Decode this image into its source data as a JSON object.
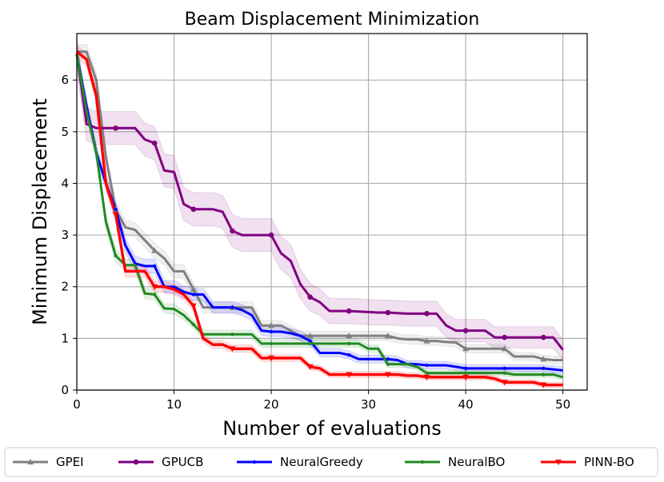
{
  "chart_data": {
    "type": "line",
    "title": "Beam Displacement Minimization",
    "xlabel": "Number of evaluations",
    "ylabel": "Minimum Displacement",
    "xlim": [
      0,
      52.5
    ],
    "ylim": [
      0,
      6.9
    ],
    "xticks": [
      0,
      10,
      20,
      30,
      40,
      50
    ],
    "yticks": [
      0,
      1,
      2,
      3,
      4,
      5,
      6
    ],
    "xtick_labels": [
      "0",
      "10",
      "20",
      "30",
      "40",
      "50"
    ],
    "ytick_labels": [
      "0",
      "1",
      "2",
      "3",
      "4",
      "5",
      "6"
    ],
    "grid": true,
    "legend_position": "bottom",
    "series": [
      {
        "name": "GPEI",
        "color": "#808080",
        "marker": "triangle-up",
        "band": 0.14,
        "x": [
          0,
          1,
          2,
          3,
          4,
          5,
          6,
          7,
          8,
          9,
          10,
          11,
          12,
          13,
          14,
          15,
          16,
          17,
          18,
          19,
          20,
          21,
          22,
          23,
          24,
          25,
          26,
          27,
          28,
          29,
          30,
          31,
          32,
          33,
          34,
          35,
          36,
          37,
          38,
          39,
          40,
          41,
          42,
          43,
          44,
          45,
          46,
          47,
          48,
          49,
          50
        ],
        "y": [
          6.55,
          6.55,
          6.0,
          4.5,
          3.5,
          3.15,
          3.1,
          2.9,
          2.7,
          2.55,
          2.3,
          2.3,
          1.95,
          1.6,
          1.6,
          1.6,
          1.6,
          1.6,
          1.6,
          1.25,
          1.25,
          1.25,
          1.15,
          1.05,
          1.05,
          1.05,
          1.05,
          1.05,
          1.05,
          1.05,
          1.05,
          1.05,
          1.05,
          1.0,
          0.98,
          0.98,
          0.95,
          0.95,
          0.93,
          0.92,
          0.8,
          0.8,
          0.8,
          0.8,
          0.8,
          0.65,
          0.65,
          0.65,
          0.6,
          0.58,
          0.58
        ],
        "markers_x": [
          4,
          8,
          12,
          16,
          20,
          24,
          28,
          32,
          36,
          40,
          44,
          48
        ]
      },
      {
        "name": "GPUCB",
        "color": "#800080",
        "marker": "circle",
        "band": 0.32,
        "x": [
          0,
          1,
          2,
          3,
          4,
          5,
          6,
          7,
          8,
          9,
          10,
          11,
          12,
          13,
          14,
          15,
          16,
          17,
          18,
          19,
          20,
          21,
          22,
          23,
          24,
          25,
          26,
          27,
          28,
          29,
          30,
          31,
          32,
          33,
          34,
          35,
          36,
          37,
          38,
          39,
          40,
          41,
          42,
          43,
          44,
          45,
          46,
          47,
          48,
          49,
          50
        ],
        "y": [
          6.5,
          5.15,
          5.07,
          5.07,
          5.07,
          5.07,
          5.07,
          4.85,
          4.78,
          4.25,
          4.22,
          3.6,
          3.5,
          3.5,
          3.5,
          3.45,
          3.08,
          3.0,
          3.0,
          3.0,
          3.0,
          2.65,
          2.5,
          2.05,
          1.8,
          1.7,
          1.53,
          1.53,
          1.53,
          1.52,
          1.51,
          1.5,
          1.5,
          1.49,
          1.48,
          1.48,
          1.48,
          1.48,
          1.25,
          1.15,
          1.15,
          1.15,
          1.15,
          1.02,
          1.02,
          1.02,
          1.02,
          1.02,
          1.02,
          1.02,
          0.78
        ],
        "markers_x": [
          4,
          8,
          12,
          16,
          20,
          24,
          28,
          32,
          36,
          40,
          44,
          48
        ]
      },
      {
        "name": "NeuralGreedy",
        "color": "#0000ff",
        "marker": "dot",
        "band": 0.14,
        "x": [
          0,
          1,
          2,
          3,
          4,
          5,
          6,
          7,
          8,
          9,
          10,
          11,
          12,
          13,
          14,
          15,
          16,
          17,
          18,
          19,
          20,
          21,
          22,
          23,
          24,
          25,
          26,
          27,
          28,
          29,
          30,
          31,
          32,
          33,
          34,
          35,
          36,
          37,
          38,
          39,
          40,
          41,
          42,
          43,
          44,
          45,
          46,
          47,
          48,
          49,
          50
        ],
        "y": [
          6.5,
          5.5,
          4.6,
          4.0,
          3.5,
          2.8,
          2.45,
          2.4,
          2.4,
          2.0,
          2.0,
          1.9,
          1.85,
          1.85,
          1.6,
          1.6,
          1.6,
          1.55,
          1.45,
          1.15,
          1.13,
          1.13,
          1.1,
          1.05,
          0.95,
          0.72,
          0.72,
          0.72,
          0.68,
          0.6,
          0.6,
          0.6,
          0.6,
          0.58,
          0.5,
          0.5,
          0.48,
          0.48,
          0.48,
          0.45,
          0.42,
          0.42,
          0.42,
          0.42,
          0.42,
          0.42,
          0.42,
          0.42,
          0.42,
          0.4,
          0.38
        ],
        "markers_x": [
          4,
          8,
          12,
          16,
          20,
          24,
          28,
          32,
          36,
          40,
          44,
          48
        ]
      },
      {
        "name": "NeuralBO",
        "color": "#228b22",
        "marker": "dot",
        "band": 0.12,
        "x": [
          0,
          1,
          2,
          3,
          4,
          5,
          6,
          7,
          8,
          9,
          10,
          11,
          12,
          13,
          14,
          15,
          16,
          17,
          18,
          19,
          20,
          21,
          22,
          23,
          24,
          25,
          26,
          27,
          28,
          29,
          30,
          31,
          32,
          33,
          34,
          35,
          36,
          37,
          38,
          39,
          40,
          41,
          42,
          43,
          44,
          45,
          46,
          47,
          48,
          49,
          50
        ],
        "y": [
          6.5,
          5.4,
          4.6,
          3.25,
          2.6,
          2.42,
          2.42,
          1.87,
          1.85,
          1.58,
          1.57,
          1.45,
          1.27,
          1.08,
          1.08,
          1.08,
          1.08,
          1.08,
          1.08,
          0.9,
          0.9,
          0.9,
          0.9,
          0.9,
          0.9,
          0.9,
          0.9,
          0.9,
          0.9,
          0.9,
          0.8,
          0.8,
          0.5,
          0.5,
          0.5,
          0.45,
          0.33,
          0.33,
          0.33,
          0.33,
          0.33,
          0.33,
          0.33,
          0.33,
          0.33,
          0.3,
          0.3,
          0.3,
          0.3,
          0.3,
          0.25
        ],
        "markers_x": [
          4,
          8,
          12,
          16,
          20,
          24,
          28,
          32,
          36,
          40,
          44,
          48
        ]
      },
      {
        "name": "PINN-BO",
        "color": "#ff0000",
        "marker": "triangle-down",
        "band": 0.12,
        "x": [
          0,
          1,
          2,
          3,
          4,
          5,
          6,
          7,
          8,
          9,
          10,
          11,
          12,
          13,
          14,
          15,
          16,
          17,
          18,
          19,
          20,
          21,
          22,
          23,
          24,
          25,
          26,
          27,
          28,
          29,
          30,
          31,
          32,
          33,
          34,
          35,
          36,
          37,
          38,
          39,
          40,
          41,
          42,
          43,
          44,
          45,
          46,
          47,
          48,
          49,
          50
        ],
        "y": [
          6.55,
          6.4,
          5.7,
          4.0,
          3.4,
          2.3,
          2.3,
          2.3,
          2.0,
          2.0,
          1.95,
          1.85,
          1.63,
          1.0,
          0.88,
          0.88,
          0.8,
          0.8,
          0.8,
          0.62,
          0.62,
          0.62,
          0.62,
          0.62,
          0.45,
          0.42,
          0.3,
          0.3,
          0.3,
          0.3,
          0.3,
          0.3,
          0.3,
          0.3,
          0.28,
          0.28,
          0.25,
          0.25,
          0.25,
          0.25,
          0.25,
          0.25,
          0.25,
          0.22,
          0.15,
          0.15,
          0.15,
          0.15,
          0.1,
          0.1,
          0.1
        ],
        "markers_x": [
          4,
          8,
          12,
          16,
          20,
          24,
          28,
          32,
          36,
          40,
          44,
          48
        ]
      }
    ]
  }
}
